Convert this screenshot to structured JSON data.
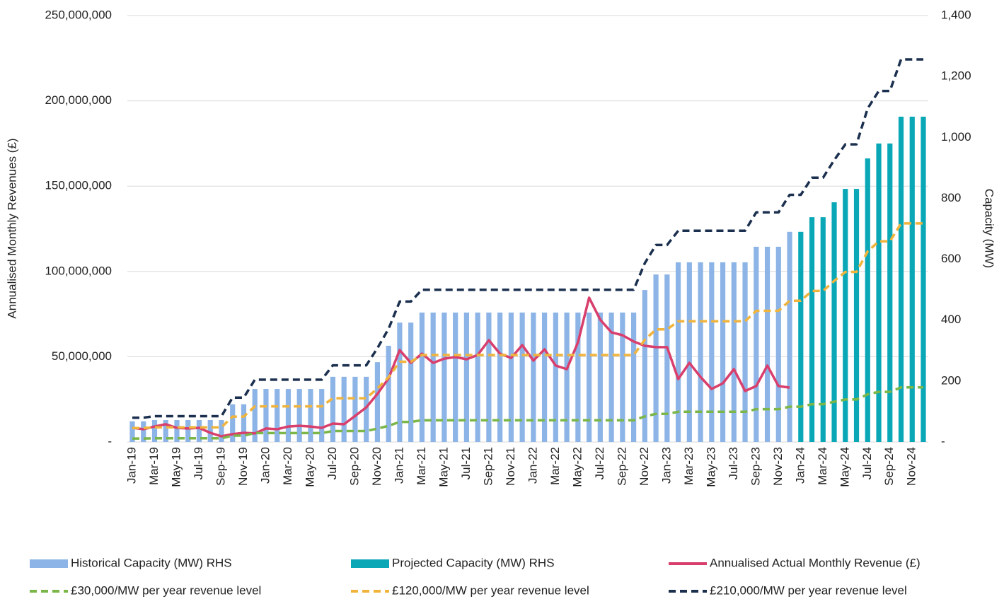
{
  "chart_data": {
    "type": "combo",
    "ylabel": "Annualised Monthly Revenues (£)",
    "y2label": "Capacity (MW)",
    "categories": [
      "Jan-19",
      null,
      "Mar-19",
      null,
      "May-19",
      null,
      "Jul-19",
      null,
      "Sep-19",
      null,
      "Nov-19",
      null,
      "Jan-20",
      null,
      "Mar-20",
      null,
      "May-20",
      null,
      "Jul-20",
      null,
      "Sep-20",
      null,
      "Nov-20",
      null,
      "Jan-21",
      null,
      "Mar-21",
      null,
      "May-21",
      null,
      "Jul-21",
      null,
      "Sep-21",
      null,
      "Nov-21",
      null,
      "Jan-22",
      null,
      "Mar-22",
      null,
      "May-22",
      null,
      "Jul-22",
      null,
      "Sep-22",
      null,
      "Nov-22",
      null,
      "Jan-23",
      null,
      "Mar-23",
      null,
      "May-23",
      null,
      "Jul-23",
      null,
      "Sep-23",
      null,
      "Nov-23",
      null,
      "Jan-24",
      null,
      "Mar-24",
      null,
      "May-24",
      null,
      "Jul-24",
      null,
      "Sep-24",
      null,
      "Nov-24",
      null
    ],
    "ylim": [
      0,
      250000000
    ],
    "yticks": [
      {
        "value": 0,
        "label": "-"
      },
      {
        "value": 50000000,
        "label": "50,000,000"
      },
      {
        "value": 100000000,
        "label": "100,000,000"
      },
      {
        "value": 150000000,
        "label": "150,000,000"
      },
      {
        "value": 200000000,
        "label": "200,000,000"
      },
      {
        "value": 250000000,
        "label": "250,000,000"
      }
    ],
    "y2lim": [
      0,
      1400
    ],
    "y2ticks": [
      {
        "value": 0,
        "label": "-"
      },
      200,
      400,
      600,
      800,
      {
        "value": 1000,
        "label": "1,000"
      },
      {
        "value": 1200,
        "label": "1,200"
      },
      {
        "value": 1400,
        "label": "1,400"
      }
    ],
    "grid": true,
    "legend": "bottom",
    "series": [
      {
        "name": "Historical Capacity (MW) RHS",
        "type": "bar",
        "axis": "y2",
        "color": "#8db4e6",
        "values": [
          68,
          68,
          72,
          72,
          72,
          72,
          72,
          72,
          72,
          124,
          124,
          174,
          174,
          174,
          174,
          174,
          174,
          174,
          214,
          214,
          214,
          214,
          262,
          316,
          392,
          392,
          425,
          425,
          425,
          425,
          425,
          425,
          425,
          425,
          425,
          425,
          425,
          425,
          425,
          425,
          425,
          425,
          425,
          425,
          425,
          425,
          499,
          550,
          550,
          590,
          590,
          590,
          590,
          590,
          590,
          590,
          641,
          641,
          641,
          690,
          null,
          null,
          null,
          null,
          null,
          null,
          null,
          null,
          null,
          null,
          null,
          null
        ]
      },
      {
        "name": "Projected Capacity (MW) RHS",
        "type": "bar",
        "axis": "y2",
        "color": "#0aa7b7",
        "values": [
          null,
          null,
          null,
          null,
          null,
          null,
          null,
          null,
          null,
          null,
          null,
          null,
          null,
          null,
          null,
          null,
          null,
          null,
          null,
          null,
          null,
          null,
          null,
          null,
          null,
          null,
          null,
          null,
          null,
          null,
          null,
          null,
          null,
          null,
          null,
          null,
          null,
          null,
          null,
          null,
          null,
          null,
          null,
          null,
          null,
          null,
          null,
          null,
          null,
          null,
          null,
          null,
          null,
          null,
          null,
          null,
          null,
          null,
          null,
          null,
          690,
          738,
          738,
          787,
          831,
          831,
          931,
          980,
          980,
          1068,
          1068,
          1068
        ]
      },
      {
        "name": "Annualised Actual Monthly Revenue (£)",
        "type": "line",
        "dashed": false,
        "color": "#d83f6c",
        "values": [
          8300000,
          7500000,
          9100000,
          10400000,
          8300000,
          7900000,
          8300000,
          5400000,
          3300000,
          4600000,
          5400000,
          5000000,
          7900000,
          7500000,
          9100000,
          9500000,
          9100000,
          8300000,
          10800000,
          10400000,
          15300000,
          20300000,
          28200000,
          37300000,
          53900000,
          46400000,
          51800000,
          46400000,
          48900000,
          49800000,
          48500000,
          51000000,
          59700000,
          51800000,
          49300000,
          56800000,
          47700000,
          54300000,
          44800000,
          42700000,
          58500000,
          84600000,
          71700000,
          64300000,
          62600000,
          58900000,
          56400000,
          55600000,
          55600000,
          36900000,
          46400000,
          38100000,
          31100000,
          34400000,
          42700000,
          29900000,
          32800000,
          44800000,
          32800000,
          31900000,
          null,
          null,
          null,
          null,
          null,
          null,
          null,
          null,
          null,
          null,
          null,
          null
        ]
      },
      {
        "name": "£30,000/MW per year revenue level",
        "type": "line",
        "dashed": true,
        "color": "#7ab648",
        "values": [
          2040000,
          2040000,
          2160000,
          2160000,
          2160000,
          2160000,
          2160000,
          2160000,
          2160000,
          3720000,
          3720000,
          5220000,
          5220000,
          5220000,
          5220000,
          5220000,
          5220000,
          5220000,
          6420000,
          6420000,
          6420000,
          6420000,
          7860000,
          9480000,
          11760000,
          11760000,
          12750000,
          12750000,
          12750000,
          12750000,
          12750000,
          12750000,
          12750000,
          12750000,
          12750000,
          12750000,
          12750000,
          12750000,
          12750000,
          12750000,
          12750000,
          12750000,
          12750000,
          12750000,
          12750000,
          12750000,
          14970000,
          16500000,
          16500000,
          17700000,
          17700000,
          17700000,
          17700000,
          17700000,
          17700000,
          17700000,
          19230000,
          19230000,
          19230000,
          20700000,
          20700000,
          22140000,
          22140000,
          23610000,
          24930000,
          24930000,
          27930000,
          29400000,
          29400000,
          32040000,
          32040000,
          32040000
        ]
      },
      {
        "name": "£120,000/MW per year revenue level",
        "type": "line",
        "dashed": true,
        "color": "#f0b43c",
        "values": [
          8160000,
          8160000,
          8640000,
          8640000,
          8640000,
          8640000,
          8640000,
          8640000,
          8640000,
          14880000,
          14880000,
          20880000,
          20880000,
          20880000,
          20880000,
          20880000,
          20880000,
          20880000,
          25680000,
          25680000,
          25680000,
          25680000,
          31440000,
          37920000,
          47040000,
          47040000,
          51000000,
          51000000,
          51000000,
          51000000,
          51000000,
          51000000,
          51000000,
          51000000,
          51000000,
          51000000,
          51000000,
          51000000,
          51000000,
          51000000,
          51000000,
          51000000,
          51000000,
          51000000,
          51000000,
          51000000,
          59880000,
          66000000,
          66000000,
          70800000,
          70800000,
          70800000,
          70800000,
          70800000,
          70800000,
          70800000,
          76920000,
          76920000,
          76920000,
          82800000,
          82800000,
          88560000,
          88560000,
          94440000,
          99720000,
          99720000,
          111720000,
          117600000,
          117600000,
          128160000,
          128160000,
          128160000
        ]
      },
      {
        "name": "£210,000/MW per year revenue level",
        "type": "line",
        "dashed": true,
        "color": "#1b2f4e",
        "values": [
          14280000,
          14280000,
          15120000,
          15120000,
          15120000,
          15120000,
          15120000,
          15120000,
          15120000,
          26040000,
          26040000,
          36540000,
          36540000,
          36540000,
          36540000,
          36540000,
          36540000,
          36540000,
          44940000,
          44940000,
          44940000,
          44940000,
          55020000,
          66360000,
          82320000,
          82320000,
          89250000,
          89250000,
          89250000,
          89250000,
          89250000,
          89250000,
          89250000,
          89250000,
          89250000,
          89250000,
          89250000,
          89250000,
          89250000,
          89250000,
          89250000,
          89250000,
          89250000,
          89250000,
          89250000,
          89250000,
          104790000,
          115500000,
          115500000,
          123900000,
          123900000,
          123900000,
          123900000,
          123900000,
          123900000,
          123900000,
          134610000,
          134610000,
          134610000,
          144900000,
          144900000,
          154980000,
          154980000,
          165270000,
          174510000,
          174510000,
          195510000,
          205800000,
          205800000,
          224280000,
          224280000,
          224280000
        ]
      }
    ]
  }
}
